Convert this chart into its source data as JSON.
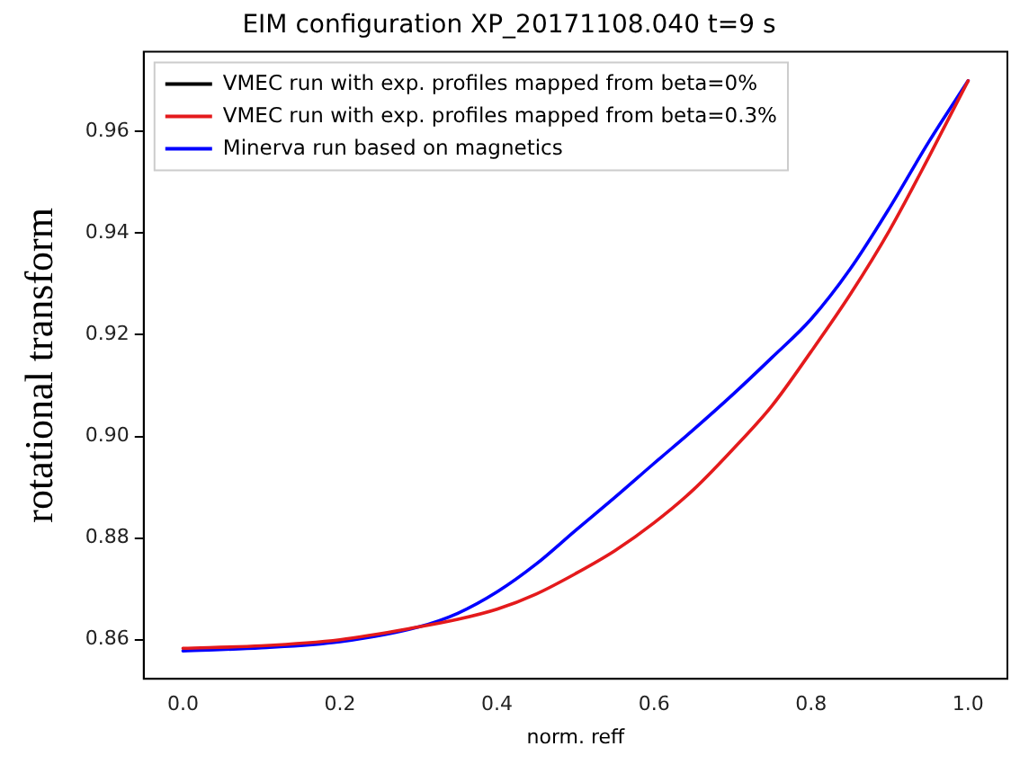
{
  "chart_data": {
    "type": "line",
    "title": "EIM configuration XP_20171108.040 t=9 s",
    "xlabel": "norm. reff",
    "ylabel": "rotational transform",
    "x": [
      0,
      0.1,
      0.2,
      0.3,
      0.35,
      0.4,
      0.45,
      0.5,
      0.55,
      0.6,
      0.65,
      0.7,
      0.75,
      0.8,
      0.85,
      0.9,
      0.95,
      1.0
    ],
    "series": [
      {
        "name": "VMEC run with exp. profiles mapped from beta=0%",
        "color": "#000000",
        "values": [
          null,
          null,
          null,
          null,
          null,
          null,
          null,
          null,
          null,
          null,
          null,
          null,
          null,
          null,
          null,
          null,
          null,
          null
        ]
      },
      {
        "name": "VMEC run with exp. profiles mapped from beta=0.3%",
        "color": "#e41a1c",
        "values": [
          0.8583,
          0.8588,
          0.86,
          0.8625,
          0.864,
          0.866,
          0.869,
          0.873,
          0.8775,
          0.883,
          0.8895,
          0.8974,
          0.906,
          0.9167,
          0.928,
          0.9406,
          0.955,
          0.97
        ]
      },
      {
        "name": "Minerva run based on magnetics",
        "color": "#0000ff",
        "values": [
          0.8578,
          0.8584,
          0.8596,
          0.8625,
          0.8652,
          0.8694,
          0.8749,
          0.8815,
          0.888,
          0.8947,
          0.9013,
          0.9082,
          0.9155,
          0.9231,
          0.933,
          0.945,
          0.958,
          0.97
        ]
      }
    ],
    "xlim": [
      -0.05,
      1.05
    ],
    "ylim": [
      0.8523,
      0.9757
    ],
    "xticks": [
      {
        "value": 0,
        "label": "0.0"
      },
      {
        "value": 0.2,
        "label": "0.2"
      },
      {
        "value": 0.4,
        "label": "0.4"
      },
      {
        "value": 0.6,
        "label": "0.6"
      },
      {
        "value": 0.8,
        "label": "0.8"
      },
      {
        "value": 1.0,
        "label": "1.0"
      }
    ],
    "yticks": [
      {
        "value": 0.86,
        "label": "0.86"
      },
      {
        "value": 0.88,
        "label": "0.88"
      },
      {
        "value": 0.9,
        "label": "0.90"
      },
      {
        "value": 0.92,
        "label": "0.92"
      },
      {
        "value": 0.94,
        "label": "0.94"
      },
      {
        "value": 0.96,
        "label": "0.96"
      }
    ],
    "grid": false,
    "legend": "top left",
    "marker": "none",
    "line_style": "solid"
  }
}
